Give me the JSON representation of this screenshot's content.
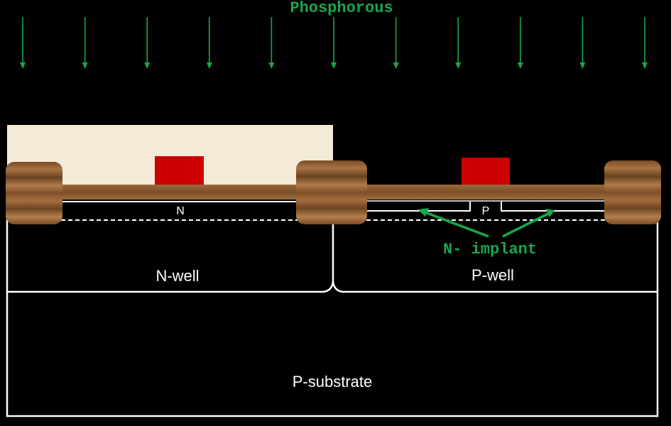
{
  "dopant": {
    "label": "Phosphorous",
    "arrow_count": 11
  },
  "regions": {
    "n_contact": "N",
    "p_contact": "P",
    "n_well": "N-well",
    "p_well": "P-well",
    "substrate": "P-substrate"
  },
  "callout": {
    "label": "N- implant"
  },
  "colors": {
    "background": "#000000",
    "arrow": "#17a84a",
    "callout": "#17a84a",
    "photoresist": "#f4ead8",
    "gate": "#cc0000",
    "oxide": "#8a5a2e",
    "outline": "#ffffff"
  }
}
